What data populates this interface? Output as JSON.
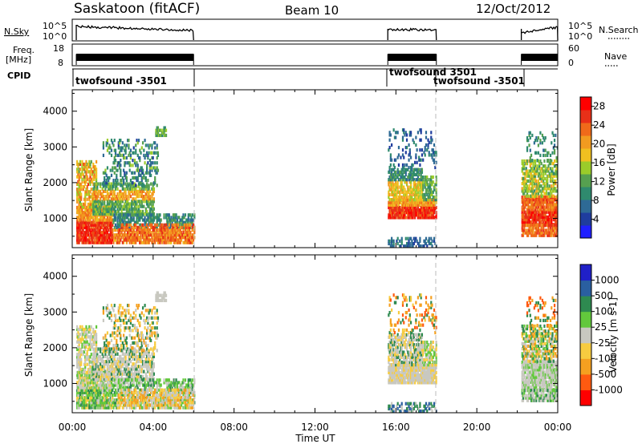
{
  "header": {
    "title": "Saskatoon (fitACF)",
    "beam": "Beam 10",
    "date": "12/Oct/2012"
  },
  "nsky_panel": {
    "label": "N.Sky",
    "left_ticks": [
      "10^5",
      "10^0"
    ],
    "right_label": "N.Search",
    "right_ticks": [
      "10^5",
      "10^0"
    ]
  },
  "freq_panel": {
    "label_line1": "Freq.",
    "label_line2": "[MHz]",
    "left_ticks": [
      "18",
      "8"
    ],
    "right_label": "Nave",
    "right_ticks": [
      "60",
      "0"
    ]
  },
  "cpid_panel": {
    "label": "CPID",
    "segments": [
      "twofsound -3501",
      "twofsound 3501",
      "twofsound -3501"
    ]
  },
  "time_axis": {
    "label": "Time UT",
    "ticks": [
      "00:00",
      "04:00",
      "08:00",
      "12:00",
      "16:00",
      "20:00",
      "00:00"
    ]
  },
  "power_panel": {
    "ylabel": "Slant Range [km]",
    "yticks": [
      "1000",
      "2000",
      "3000",
      "4000"
    ],
    "colorbar_label": "Power [dB]",
    "colorbar_ticks": [
      "4",
      "8",
      "12",
      "16",
      "20",
      "24",
      "28"
    ]
  },
  "velocity_panel": {
    "ylabel": "Slant Range [km]",
    "yticks": [
      "1000",
      "2000",
      "3000",
      "4000"
    ],
    "colorbar_label": "Velocity [m s-1]",
    "colorbar_ticks": [
      "1000",
      "500",
      "100",
      "25",
      "-25",
      "-100",
      "-500",
      "-1000"
    ]
  },
  "chart_data": {
    "type": "heatmap",
    "xlabel": "Time UT",
    "ylabel": "Slant Range [km]",
    "x_range_hours": [
      0,
      24
    ],
    "y_range_km": [
      180,
      4600
    ],
    "data_periods_hours": [
      [
        0.2,
        6.0
      ],
      [
        15.6,
        18.0
      ],
      [
        22.2,
        24.0
      ]
    ],
    "mode_changes_hours": [
      6.0,
      18.0
    ],
    "power_colorbar": {
      "unit": "dB",
      "range": [
        0,
        30
      ],
      "colors": [
        "#2020ff",
        "#1f3d9e",
        "#2e6a95",
        "#2f8a6e",
        "#56a050",
        "#9bcc2a",
        "#f0c020",
        "#f29b20",
        "#f06a1a",
        "#e83018",
        "#ff0000"
      ]
    },
    "velocity_colorbar": {
      "unit": "m s-1",
      "levels": [
        -1000,
        -500,
        -100,
        -25,
        25,
        100,
        500,
        1000
      ],
      "colors": [
        "#ff0000",
        "#ff5a10",
        "#f5a020",
        "#f7cc40",
        "#c8c8c0",
        "#62c83c",
        "#2e8a50",
        "#2a5fa0",
        "#2020c8"
      ]
    }
  }
}
